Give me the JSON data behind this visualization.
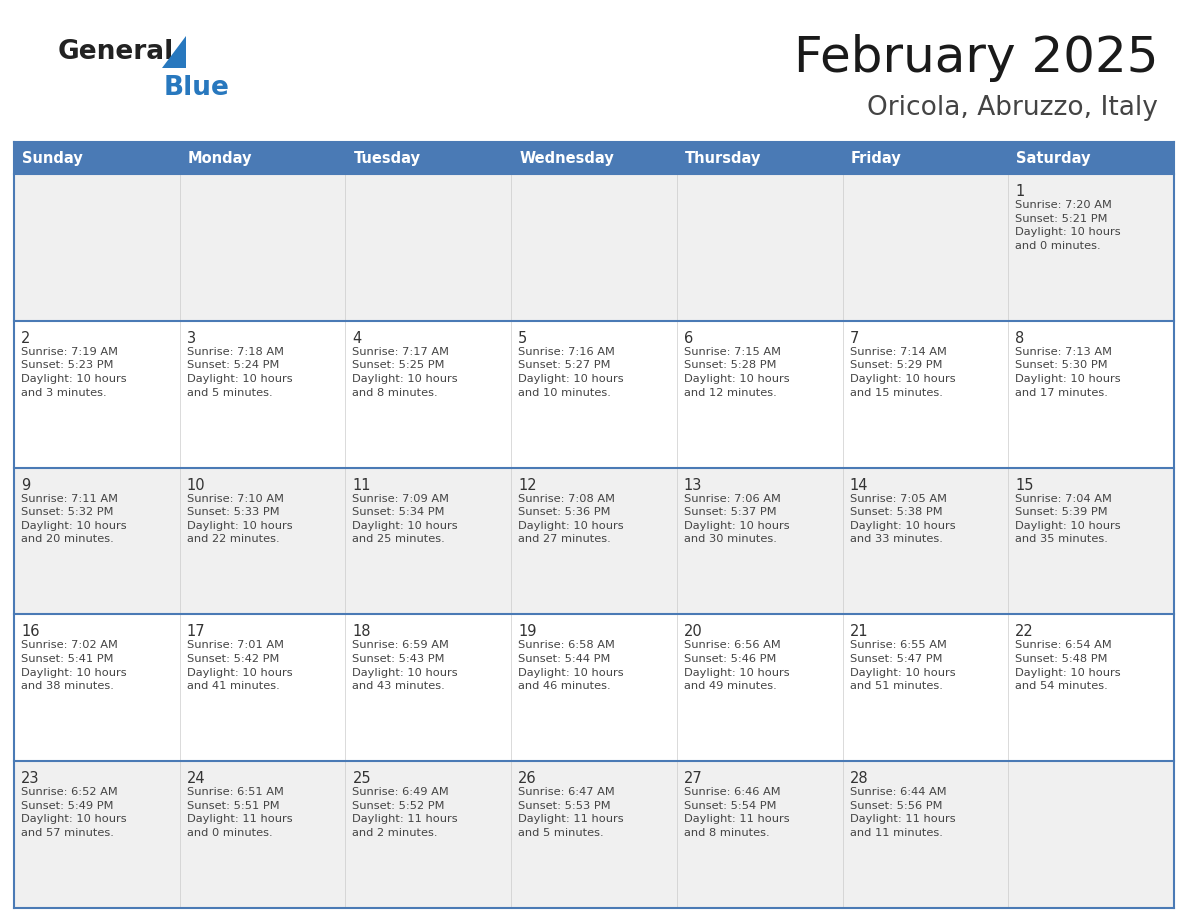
{
  "title": "February 2025",
  "subtitle": "Oricola, Abruzzo, Italy",
  "days_of_week": [
    "Sunday",
    "Monday",
    "Tuesday",
    "Wednesday",
    "Thursday",
    "Friday",
    "Saturday"
  ],
  "header_bg": "#4a7ab5",
  "header_text": "#ffffff",
  "row_bg_odd": "#f0f0f0",
  "row_bg_even": "#ffffff",
  "border_color": "#4a7ab5",
  "day_text_color": "#333333",
  "detail_text_color": "#444444",
  "title_color": "#1a1a1a",
  "subtitle_color": "#444444",
  "logo_color_general": "#222222",
  "logo_color_blue": "#2878be",
  "logo_triangle_color": "#2878be",
  "weeks": [
    [
      {
        "day": null,
        "info": null
      },
      {
        "day": null,
        "info": null
      },
      {
        "day": null,
        "info": null
      },
      {
        "day": null,
        "info": null
      },
      {
        "day": null,
        "info": null
      },
      {
        "day": null,
        "info": null
      },
      {
        "day": 1,
        "info": "Sunrise: 7:20 AM\nSunset: 5:21 PM\nDaylight: 10 hours\nand 0 minutes."
      }
    ],
    [
      {
        "day": 2,
        "info": "Sunrise: 7:19 AM\nSunset: 5:23 PM\nDaylight: 10 hours\nand 3 minutes."
      },
      {
        "day": 3,
        "info": "Sunrise: 7:18 AM\nSunset: 5:24 PM\nDaylight: 10 hours\nand 5 minutes."
      },
      {
        "day": 4,
        "info": "Sunrise: 7:17 AM\nSunset: 5:25 PM\nDaylight: 10 hours\nand 8 minutes."
      },
      {
        "day": 5,
        "info": "Sunrise: 7:16 AM\nSunset: 5:27 PM\nDaylight: 10 hours\nand 10 minutes."
      },
      {
        "day": 6,
        "info": "Sunrise: 7:15 AM\nSunset: 5:28 PM\nDaylight: 10 hours\nand 12 minutes."
      },
      {
        "day": 7,
        "info": "Sunrise: 7:14 AM\nSunset: 5:29 PM\nDaylight: 10 hours\nand 15 minutes."
      },
      {
        "day": 8,
        "info": "Sunrise: 7:13 AM\nSunset: 5:30 PM\nDaylight: 10 hours\nand 17 minutes."
      }
    ],
    [
      {
        "day": 9,
        "info": "Sunrise: 7:11 AM\nSunset: 5:32 PM\nDaylight: 10 hours\nand 20 minutes."
      },
      {
        "day": 10,
        "info": "Sunrise: 7:10 AM\nSunset: 5:33 PM\nDaylight: 10 hours\nand 22 minutes."
      },
      {
        "day": 11,
        "info": "Sunrise: 7:09 AM\nSunset: 5:34 PM\nDaylight: 10 hours\nand 25 minutes."
      },
      {
        "day": 12,
        "info": "Sunrise: 7:08 AM\nSunset: 5:36 PM\nDaylight: 10 hours\nand 27 minutes."
      },
      {
        "day": 13,
        "info": "Sunrise: 7:06 AM\nSunset: 5:37 PM\nDaylight: 10 hours\nand 30 minutes."
      },
      {
        "day": 14,
        "info": "Sunrise: 7:05 AM\nSunset: 5:38 PM\nDaylight: 10 hours\nand 33 minutes."
      },
      {
        "day": 15,
        "info": "Sunrise: 7:04 AM\nSunset: 5:39 PM\nDaylight: 10 hours\nand 35 minutes."
      }
    ],
    [
      {
        "day": 16,
        "info": "Sunrise: 7:02 AM\nSunset: 5:41 PM\nDaylight: 10 hours\nand 38 minutes."
      },
      {
        "day": 17,
        "info": "Sunrise: 7:01 AM\nSunset: 5:42 PM\nDaylight: 10 hours\nand 41 minutes."
      },
      {
        "day": 18,
        "info": "Sunrise: 6:59 AM\nSunset: 5:43 PM\nDaylight: 10 hours\nand 43 minutes."
      },
      {
        "day": 19,
        "info": "Sunrise: 6:58 AM\nSunset: 5:44 PM\nDaylight: 10 hours\nand 46 minutes."
      },
      {
        "day": 20,
        "info": "Sunrise: 6:56 AM\nSunset: 5:46 PM\nDaylight: 10 hours\nand 49 minutes."
      },
      {
        "day": 21,
        "info": "Sunrise: 6:55 AM\nSunset: 5:47 PM\nDaylight: 10 hours\nand 51 minutes."
      },
      {
        "day": 22,
        "info": "Sunrise: 6:54 AM\nSunset: 5:48 PM\nDaylight: 10 hours\nand 54 minutes."
      }
    ],
    [
      {
        "day": 23,
        "info": "Sunrise: 6:52 AM\nSunset: 5:49 PM\nDaylight: 10 hours\nand 57 minutes."
      },
      {
        "day": 24,
        "info": "Sunrise: 6:51 AM\nSunset: 5:51 PM\nDaylight: 11 hours\nand 0 minutes."
      },
      {
        "day": 25,
        "info": "Sunrise: 6:49 AM\nSunset: 5:52 PM\nDaylight: 11 hours\nand 2 minutes."
      },
      {
        "day": 26,
        "info": "Sunrise: 6:47 AM\nSunset: 5:53 PM\nDaylight: 11 hours\nand 5 minutes."
      },
      {
        "day": 27,
        "info": "Sunrise: 6:46 AM\nSunset: 5:54 PM\nDaylight: 11 hours\nand 8 minutes."
      },
      {
        "day": 28,
        "info": "Sunrise: 6:44 AM\nSunset: 5:56 PM\nDaylight: 11 hours\nand 11 minutes."
      },
      {
        "day": null,
        "info": null
      }
    ]
  ]
}
